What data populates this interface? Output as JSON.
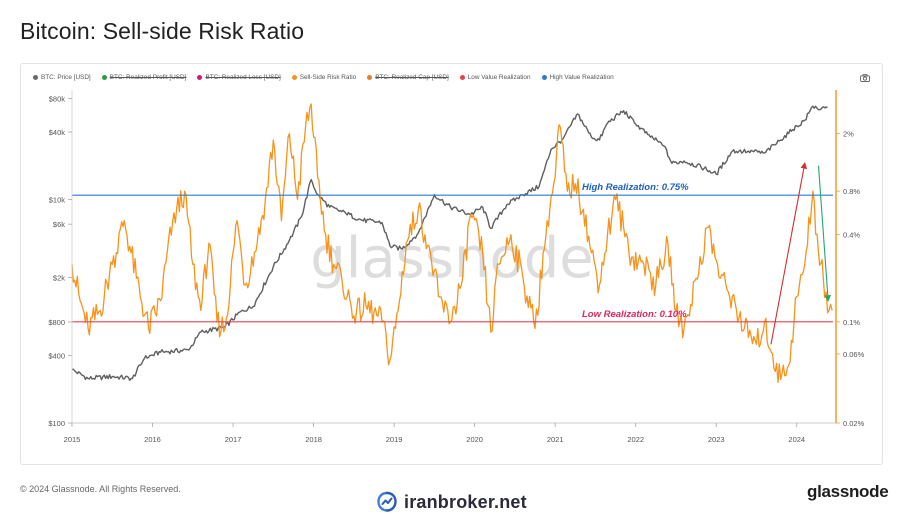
{
  "page": {
    "title": "Bitcoin: Sell-side Risk Ratio",
    "copyright": "© 2024 Glassnode. All Rights Reserved.",
    "brand_text": "iranbroker.net",
    "brand_logo_icon": "iranbroker-logo-icon",
    "logo_text": "glassnode",
    "watermark": "glassnode"
  },
  "legend": [
    {
      "label": "BTC: Price [USD]",
      "color": "#6b6b6b",
      "enabled": true
    },
    {
      "label": "BTC: Realized Profit [USD]",
      "color": "#2e9b3d",
      "enabled": false
    },
    {
      "label": "BTC: Realized Loss [USD]",
      "color": "#d21a7a",
      "enabled": false
    },
    {
      "label": "Sell-Side Risk Ratio",
      "color": "#f7931a",
      "enabled": true
    },
    {
      "label": "BTC: Realized Cap [USD]",
      "color": "#e5802a",
      "enabled": false
    },
    {
      "label": "Low Value Realization",
      "color": "#e8414e",
      "enabled": true
    },
    {
      "label": "High Value Realization",
      "color": "#2e7ad1",
      "enabled": true
    }
  ],
  "chart_data": {
    "type": "line",
    "title": "Bitcoin: Sell-side Risk Ratio",
    "x_ticks": [
      "2015",
      "2016",
      "2017",
      "2018",
      "2019",
      "2020",
      "2021",
      "2022",
      "2023",
      "2024"
    ],
    "x_range": [
      2015.0,
      2024.45
    ],
    "left_axis": {
      "scale": "log",
      "range": [
        100,
        95000
      ],
      "ticks": [
        {
          "value": 100,
          "label": "$100"
        },
        {
          "value": 400,
          "label": "$400"
        },
        {
          "value": 800,
          "label": "$800"
        },
        {
          "value": 2000,
          "label": "$2k"
        },
        {
          "value": 6000,
          "label": "$6k"
        },
        {
          "value": 10000,
          "label": "$10k"
        },
        {
          "value": 40000,
          "label": "$40k"
        },
        {
          "value": 80000,
          "label": "$80k"
        }
      ]
    },
    "right_axis": {
      "scale": "log",
      "range": [
        0.02,
        4.0
      ],
      "ticks": [
        {
          "value": 0.02,
          "label": "0.02%"
        },
        {
          "value": 0.06,
          "label": "0.06%"
        },
        {
          "value": 0.1,
          "label": "0.1%"
        },
        {
          "value": 0.4,
          "label": "0.4%"
        },
        {
          "value": 0.8,
          "label": "0.8%"
        },
        {
          "value": 2,
          "label": "2%"
        }
      ]
    },
    "thresholds": [
      {
        "name": "High Value Realization",
        "value": 0.75,
        "label": "High Realization: 0.75%",
        "color": "#2e7ad1"
      },
      {
        "name": "Low Value Realization",
        "value": 0.1,
        "label": "Low Realization: 0.10%",
        "color": "#e8414e"
      }
    ],
    "series": [
      {
        "name": "BTC: Price [USD]",
        "axis": "left",
        "color": "#5f5f5f",
        "x": [
          2015.0,
          2015.2,
          2015.5,
          2015.75,
          2015.9,
          2016.1,
          2016.45,
          2016.6,
          2016.9,
          2017.1,
          2017.25,
          2017.5,
          2017.7,
          2017.85,
          2017.97,
          2018.05,
          2018.2,
          2018.4,
          2018.6,
          2018.85,
          2018.95,
          2019.1,
          2019.3,
          2019.5,
          2019.7,
          2019.95,
          2020.1,
          2020.2,
          2020.4,
          2020.6,
          2020.8,
          2020.95,
          2021.1,
          2021.28,
          2021.45,
          2021.55,
          2021.65,
          2021.85,
          2022.0,
          2022.15,
          2022.35,
          2022.45,
          2022.6,
          2022.85,
          2023.0,
          2023.2,
          2023.4,
          2023.6,
          2023.8,
          2023.95,
          2024.1,
          2024.2,
          2024.3,
          2024.38
        ],
        "y": [
          300,
          250,
          260,
          250,
          380,
          430,
          450,
          650,
          720,
          1000,
          1100,
          2500,
          4300,
          7000,
          15000,
          11000,
          8500,
          7500,
          6500,
          6200,
          3800,
          3600,
          5000,
          11000,
          8500,
          7300,
          8500,
          5500,
          9000,
          11000,
          13000,
          28000,
          35000,
          58000,
          36000,
          34000,
          48000,
          62000,
          47000,
          38000,
          30000,
          21000,
          22000,
          19000,
          16800,
          27000,
          27000,
          26000,
          34000,
          42000,
          51000,
          68000,
          64000,
          66000
        ]
      },
      {
        "name": "Sell-Side Risk Ratio",
        "axis": "right",
        "color": "#f7931a",
        "x": [
          2015.0,
          2015.1,
          2015.2,
          2015.35,
          2015.5,
          2015.65,
          2015.8,
          2015.95,
          2016.1,
          2016.25,
          2016.4,
          2016.5,
          2016.6,
          2016.7,
          2016.8,
          2016.9,
          2017.05,
          2017.15,
          2017.3,
          2017.4,
          2017.5,
          2017.6,
          2017.7,
          2017.8,
          2017.9,
          2017.97,
          2018.05,
          2018.15,
          2018.25,
          2018.35,
          2018.5,
          2018.65,
          2018.85,
          2018.95,
          2019.05,
          2019.15,
          2019.3,
          2019.45,
          2019.55,
          2019.7,
          2019.85,
          2019.95,
          2020.1,
          2020.2,
          2020.3,
          2020.45,
          2020.6,
          2020.75,
          2020.9,
          2021.0,
          2021.05,
          2021.15,
          2021.25,
          2021.35,
          2021.45,
          2021.55,
          2021.65,
          2021.75,
          2021.85,
          2021.95,
          2022.1,
          2022.25,
          2022.4,
          2022.5,
          2022.6,
          2022.75,
          2022.9,
          2023.05,
          2023.2,
          2023.35,
          2023.5,
          2023.6,
          2023.7,
          2023.8,
          2023.9,
          2024.0,
          2024.1,
          2024.2,
          2024.27,
          2024.33,
          2024.4,
          2024.44
        ],
        "y": [
          0.25,
          0.14,
          0.09,
          0.12,
          0.25,
          0.5,
          0.2,
          0.09,
          0.14,
          0.5,
          0.8,
          0.25,
          0.12,
          0.35,
          0.1,
          0.09,
          0.5,
          0.18,
          0.35,
          0.7,
          1.8,
          0.5,
          2.0,
          0.7,
          2.2,
          3.2,
          1.0,
          0.4,
          0.25,
          0.2,
          0.11,
          0.13,
          0.1,
          0.055,
          0.12,
          0.35,
          0.6,
          0.3,
          0.15,
          0.1,
          0.2,
          0.55,
          0.3,
          0.085,
          0.25,
          0.4,
          0.2,
          0.09,
          0.5,
          1.0,
          2.3,
          0.8,
          0.9,
          0.6,
          0.3,
          0.18,
          0.4,
          0.7,
          0.45,
          0.28,
          0.25,
          0.18,
          0.35,
          0.12,
          0.09,
          0.2,
          0.45,
          0.2,
          0.15,
          0.09,
          0.07,
          0.1,
          0.06,
          0.04,
          0.05,
          0.15,
          0.25,
          0.8,
          0.3,
          0.2,
          0.12,
          0.12
        ]
      }
    ],
    "annotations": [
      {
        "type": "arrow",
        "color": "#d32f2f",
        "from": {
          "x": 2023.68,
          "y": 0.07
        },
        "to": {
          "x": 2024.1,
          "y": 1.25
        }
      },
      {
        "type": "arrow",
        "color": "#22a86b",
        "from": {
          "x": 2024.27,
          "y": 1.2
        },
        "to": {
          "x": 2024.39,
          "y": 0.14
        }
      }
    ]
  }
}
